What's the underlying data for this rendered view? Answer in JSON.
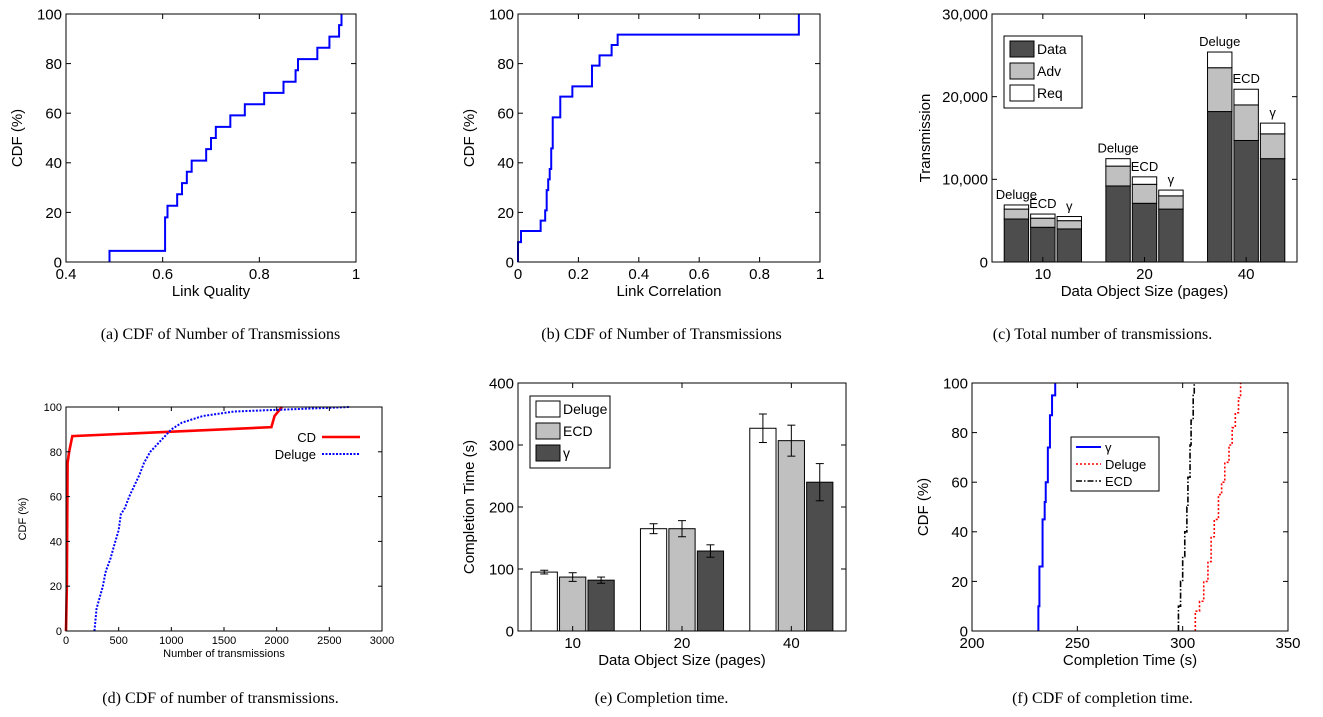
{
  "chart_data": [
    {
      "id": "a",
      "type": "line",
      "caption": "(a) CDF of Number of Transmissions",
      "xlabel": "Link Quality",
      "ylabel": "CDF (%)",
      "xlim": [
        0.4,
        1
      ],
      "ylim": [
        0,
        100
      ],
      "xticks": [
        0.4,
        0.6,
        0.8,
        1
      ],
      "xtick_labels": [
        "0.4",
        "0.6",
        "0.8",
        "1"
      ],
      "yticks": [
        0,
        20,
        40,
        60,
        80,
        100
      ],
      "ytick_labels": [
        "0",
        "20",
        "40",
        "60",
        "80",
        "100"
      ],
      "grid": false,
      "series": [
        {
          "color": "#0000ff",
          "step": true,
          "points": [
            [
              0.49,
              0
            ],
            [
              0.49,
              4.5
            ],
            [
              0.605,
              4.5
            ],
            [
              0.605,
              18
            ],
            [
              0.61,
              18
            ],
            [
              0.61,
              22.7
            ],
            [
              0.63,
              22.7
            ],
            [
              0.63,
              27.3
            ],
            [
              0.64,
              27.3
            ],
            [
              0.64,
              31.8
            ],
            [
              0.65,
              31.8
            ],
            [
              0.65,
              36.4
            ],
            [
              0.66,
              36.4
            ],
            [
              0.66,
              40.9
            ],
            [
              0.69,
              40.9
            ],
            [
              0.69,
              45.5
            ],
            [
              0.7,
              45.5
            ],
            [
              0.7,
              50
            ],
            [
              0.71,
              50
            ],
            [
              0.71,
              54.5
            ],
            [
              0.74,
              54.5
            ],
            [
              0.74,
              59.1
            ],
            [
              0.77,
              59.1
            ],
            [
              0.77,
              63.6
            ],
            [
              0.81,
              63.6
            ],
            [
              0.81,
              68.2
            ],
            [
              0.85,
              68.2
            ],
            [
              0.85,
              72.7
            ],
            [
              0.875,
              72.7
            ],
            [
              0.875,
              77.3
            ],
            [
              0.88,
              77.3
            ],
            [
              0.88,
              81.8
            ],
            [
              0.92,
              81.8
            ],
            [
              0.92,
              86.4
            ],
            [
              0.945,
              86.4
            ],
            [
              0.945,
              90.9
            ],
            [
              0.965,
              90.9
            ],
            [
              0.965,
              95.5
            ],
            [
              0.97,
              95.5
            ],
            [
              0.97,
              100
            ]
          ]
        }
      ]
    },
    {
      "id": "b",
      "type": "line",
      "caption": "(b) CDF of Number of Transmissions",
      "xlabel": "Link Correlation",
      "ylabel": "CDF (%)",
      "xlim": [
        0,
        1
      ],
      "ylim": [
        0,
        100
      ],
      "xticks": [
        0,
        0.2,
        0.4,
        0.6,
        0.8,
        1
      ],
      "xtick_labels": [
        "0",
        "0.2",
        "0.4",
        "0.6",
        "0.8",
        "1"
      ],
      "yticks": [
        0,
        20,
        40,
        60,
        80,
        100
      ],
      "ytick_labels": [
        "0",
        "20",
        "40",
        "60",
        "80",
        "100"
      ],
      "grid": false,
      "series": [
        {
          "color": "#0000ff",
          "step": true,
          "points": [
            [
              0,
              0
            ],
            [
              0,
              8
            ],
            [
              0.01,
              8
            ],
            [
              0.01,
              12.5
            ],
            [
              0.075,
              12.5
            ],
            [
              0.075,
              16.7
            ],
            [
              0.09,
              16.7
            ],
            [
              0.09,
              20.8
            ],
            [
              0.095,
              20.8
            ],
            [
              0.095,
              29
            ],
            [
              0.1,
              29
            ],
            [
              0.1,
              33.3
            ],
            [
              0.105,
              33.3
            ],
            [
              0.105,
              37.5
            ],
            [
              0.11,
              37.5
            ],
            [
              0.11,
              45.8
            ],
            [
              0.115,
              45.8
            ],
            [
              0.115,
              58.3
            ],
            [
              0.14,
              58.3
            ],
            [
              0.14,
              66.7
            ],
            [
              0.18,
              66.7
            ],
            [
              0.18,
              70.8
            ],
            [
              0.245,
              70.8
            ],
            [
              0.245,
              79.2
            ],
            [
              0.27,
              79.2
            ],
            [
              0.27,
              83.3
            ],
            [
              0.31,
              83.3
            ],
            [
              0.31,
              87.5
            ],
            [
              0.33,
              87.5
            ],
            [
              0.33,
              91.7
            ],
            [
              0.93,
              91.7
            ],
            [
              0.93,
              100
            ]
          ]
        }
      ]
    },
    {
      "id": "c",
      "type": "bar",
      "stacked": true,
      "caption": "(c) Total number of transmissions.",
      "xlabel": "Data Object Size (pages)",
      "ylabel": "Transmission",
      "ylim": [
        0,
        30000
      ],
      "yticks": [
        0,
        10000,
        20000,
        30000
      ],
      "ytick_labels": [
        "0",
        "10,000",
        "20,000",
        "30,000"
      ],
      "categories": [
        "10",
        "20",
        "40"
      ],
      "bar_labels": [
        "Deluge",
        "ECD",
        "γ"
      ],
      "legend_position": "top-left",
      "series": [
        {
          "name": "Data",
          "color": "#4d4d4d",
          "values": [
            [
              5200,
              4200,
              4000
            ],
            [
              9200,
              7100,
              6400
            ],
            [
              18200,
              14700,
              12500
            ]
          ]
        },
        {
          "name": "Adv",
          "color": "#c0c0c0",
          "values": [
            [
              1200,
              1100,
              1000
            ],
            [
              2400,
              2300,
              1600
            ],
            [
              5300,
              4300,
              3000
            ]
          ]
        },
        {
          "name": "Req",
          "color": "#ffffff",
          "values": [
            [
              500,
              500,
              500
            ],
            [
              900,
              900,
              700
            ],
            [
              1900,
              1900,
              1300
            ]
          ]
        }
      ]
    },
    {
      "id": "d",
      "type": "line",
      "caption": "(d) CDF of number of transmissions.",
      "xlabel": "Number of transmissions",
      "ylabel": "CDF (%)",
      "xlim": [
        0,
        3000
      ],
      "ylim": [
        0,
        100
      ],
      "xticks": [
        0,
        500,
        1000,
        1500,
        2000,
        2500,
        3000
      ],
      "xtick_labels": [
        "0",
        "500",
        "1000",
        "1500",
        "2000",
        "2500",
        "3000"
      ],
      "yticks": [
        0,
        20,
        40,
        60,
        80,
        100
      ],
      "ytick_labels": [
        "0",
        "20",
        "40",
        "60",
        "80",
        "100"
      ],
      "legend_position": "top-right",
      "series": [
        {
          "name": "CD",
          "color": "#ff0000",
          "dash": "",
          "width": 2.6,
          "points": [
            [
              0,
              0
            ],
            [
              8,
              20
            ],
            [
              12,
              50
            ],
            [
              15,
              75
            ],
            [
              30,
              80
            ],
            [
              60,
              87
            ],
            [
              1950,
              91
            ],
            [
              1980,
              96
            ],
            [
              2050,
              100
            ]
          ]
        },
        {
          "name": "Deluge",
          "color": "#0000ff",
          "dash": "2,1.5",
          "width": 2,
          "points": [
            [
              270,
              0
            ],
            [
              290,
              10
            ],
            [
              320,
              15
            ],
            [
              350,
              20
            ],
            [
              370,
              25
            ],
            [
              380,
              27
            ],
            [
              420,
              32
            ],
            [
              450,
              37
            ],
            [
              500,
              45
            ],
            [
              520,
              52
            ],
            [
              560,
              55
            ],
            [
              600,
              60
            ],
            [
              650,
              65
            ],
            [
              700,
              70
            ],
            [
              740,
              75
            ],
            [
              800,
              80
            ],
            [
              900,
              85
            ],
            [
              1000,
              90
            ],
            [
              1100,
              93
            ],
            [
              1300,
              96
            ],
            [
              1600,
              98
            ],
            [
              2700,
              100
            ]
          ]
        }
      ]
    },
    {
      "id": "e",
      "type": "bar",
      "caption": "(e) Completion time.",
      "xlabel": "Data Object Size (pages)",
      "ylabel": "Completion Time (s)",
      "ylim": [
        0,
        400
      ],
      "yticks": [
        0,
        100,
        200,
        300,
        400
      ],
      "ytick_labels": [
        "0",
        "100",
        "200",
        "300",
        "400"
      ],
      "categories": [
        "10",
        "20",
        "40"
      ],
      "legend_position": "top-left",
      "series": [
        {
          "name": "Deluge",
          "color": "#ffffff",
          "values": [
            95,
            165,
            327
          ],
          "errors": [
            3,
            8,
            23
          ]
        },
        {
          "name": "ECD",
          "color": "#c0c0c0",
          "values": [
            87,
            165,
            307
          ],
          "errors": [
            7,
            13,
            25
          ]
        },
        {
          "name": "γ",
          "color": "#4d4d4d",
          "values": [
            82,
            129,
            240
          ],
          "errors": [
            5,
            10,
            30
          ]
        }
      ]
    },
    {
      "id": "f",
      "type": "line",
      "caption": "(f) CDF of completion time.",
      "xlabel": "Completion Time (s)",
      "ylabel": "CDF (%)",
      "xlim": [
        200,
        350
      ],
      "ylim": [
        0,
        100
      ],
      "xticks": [
        200,
        250,
        300,
        350
      ],
      "xtick_labels": [
        "200",
        "250",
        "300",
        "350"
      ],
      "yticks": [
        0,
        20,
        40,
        60,
        80,
        100
      ],
      "ytick_labels": [
        "0",
        "20",
        "40",
        "60",
        "80",
        "100"
      ],
      "legend_position": "top-left",
      "series": [
        {
          "name": "γ",
          "color": "#0000ff",
          "dash": "",
          "width": 2,
          "step": true,
          "points": [
            [
              231.5,
              0
            ],
            [
              231.5,
              10
            ],
            [
              232,
              10
            ],
            [
              232,
              26
            ],
            [
              233.5,
              26
            ],
            [
              233.5,
              45
            ],
            [
              234.5,
              45
            ],
            [
              234.5,
              52
            ],
            [
              235,
              52
            ],
            [
              235,
              60
            ],
            [
              236,
              60
            ],
            [
              236,
              74
            ],
            [
              237,
              74
            ],
            [
              237,
              87
            ],
            [
              238,
              87
            ],
            [
              238,
              95
            ],
            [
              239.5,
              95
            ],
            [
              239.5,
              100
            ]
          ]
        },
        {
          "name": "Deluge",
          "color": "#ff0000",
          "dash": "2,2",
          "width": 1.6,
          "step": true,
          "points": [
            [
              306,
              0
            ],
            [
              306,
              8
            ],
            [
              308,
              8
            ],
            [
              308,
              12
            ],
            [
              310,
              12
            ],
            [
              310,
              20
            ],
            [
              312,
              20
            ],
            [
              312,
              28
            ],
            [
              313.5,
              28
            ],
            [
              313.5,
              38
            ],
            [
              315,
              38
            ],
            [
              315,
              45
            ],
            [
              317,
              45
            ],
            [
              317,
              55
            ],
            [
              318.5,
              55
            ],
            [
              318.5,
              60
            ],
            [
              320,
              60
            ],
            [
              320,
              68
            ],
            [
              322,
              68
            ],
            [
              322,
              75
            ],
            [
              323.5,
              75
            ],
            [
              323.5,
              82
            ],
            [
              325,
              82
            ],
            [
              325,
              88
            ],
            [
              326.5,
              88
            ],
            [
              326.5,
              94
            ],
            [
              327.5,
              94
            ],
            [
              327.5,
              100
            ]
          ]
        },
        {
          "name": "ECD",
          "color": "#000000",
          "dash": "6,2,1.5,2",
          "width": 1.6,
          "step": true,
          "points": [
            [
              298,
              0
            ],
            [
              298,
              10
            ],
            [
              299,
              10
            ],
            [
              299,
              20
            ],
            [
              300,
              20
            ],
            [
              300,
              30
            ],
            [
              301,
              30
            ],
            [
              301,
              40
            ],
            [
              302,
              40
            ],
            [
              302,
              50
            ],
            [
              302.5,
              50
            ],
            [
              302.5,
              62
            ],
            [
              303.5,
              62
            ],
            [
              303.5,
              75
            ],
            [
              304,
              75
            ],
            [
              304,
              85
            ],
            [
              305,
              85
            ],
            [
              305,
              95
            ],
            [
              305.5,
              95
            ],
            [
              305.5,
              100
            ]
          ]
        }
      ]
    }
  ]
}
